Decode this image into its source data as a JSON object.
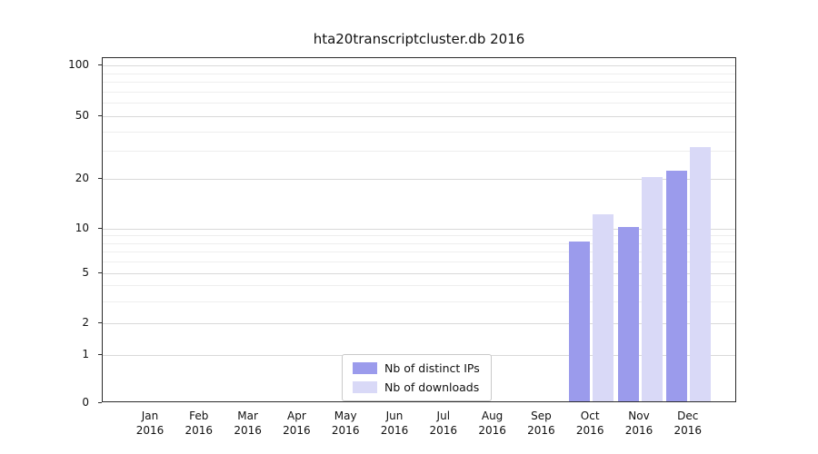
{
  "title": "hta20transcriptcluster.db 2016",
  "chart_data": {
    "type": "bar",
    "categories": [
      "Jan",
      "Feb",
      "Mar",
      "Apr",
      "May",
      "Jun",
      "Jul",
      "Aug",
      "Sep",
      "Oct",
      "Nov",
      "Dec"
    ],
    "year": "2016",
    "series": [
      {
        "name": "Nb of distinct IPs",
        "color": "#9b9bec",
        "values": [
          0,
          0,
          0,
          0,
          0,
          0,
          0,
          0,
          0,
          8,
          10,
          22
        ]
      },
      {
        "name": "Nb of downloads",
        "color": "#d9d9f7",
        "values": [
          0,
          0,
          0,
          0,
          0,
          0,
          0,
          0,
          0,
          12,
          20,
          31
        ]
      }
    ],
    "yticks": [
      0,
      1,
      2,
      5,
      10,
      20,
      50,
      100
    ],
    "scale": "log",
    "ylim": [
      0,
      100
    ],
    "grid": true,
    "legend_position": "bottom-center",
    "xlabel": "",
    "ylabel": ""
  }
}
